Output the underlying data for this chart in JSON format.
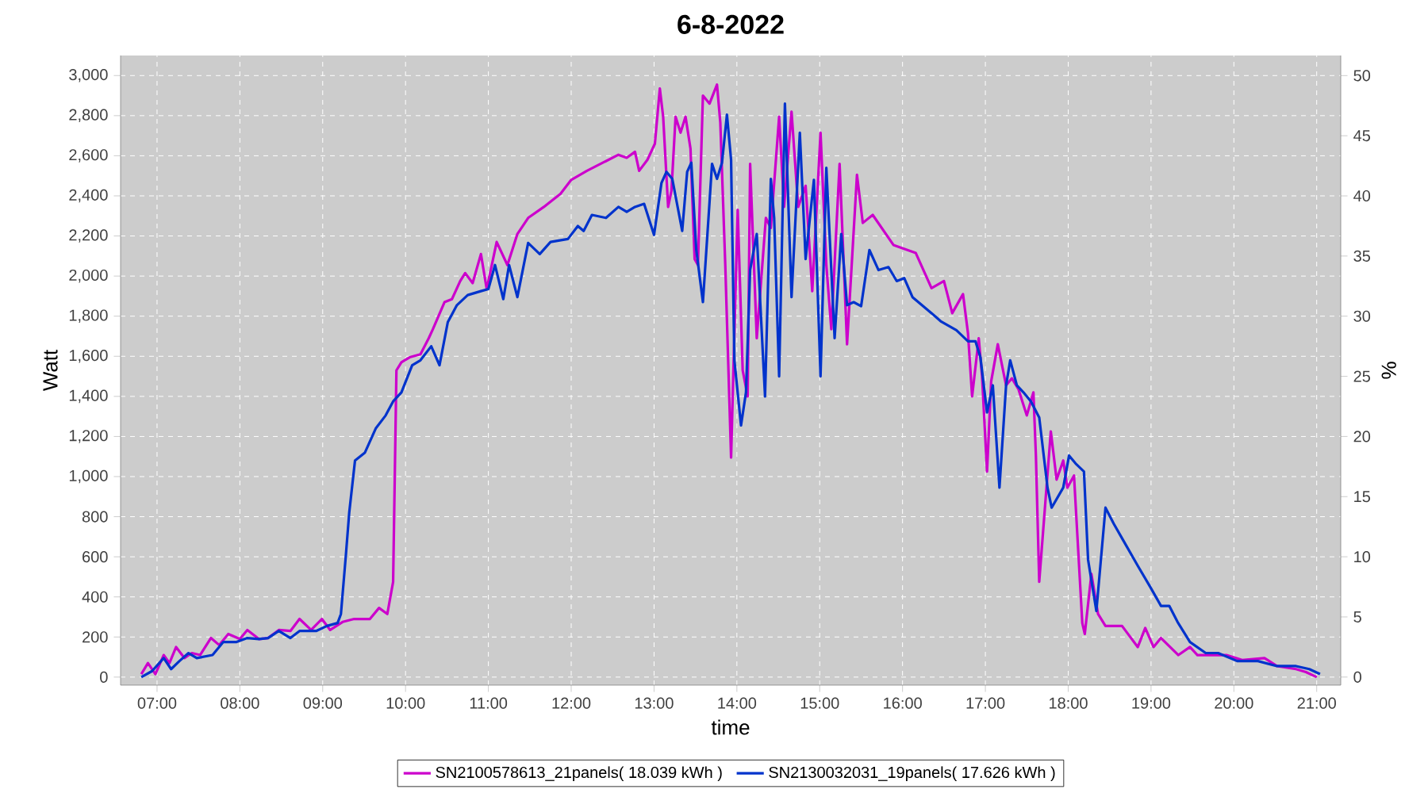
{
  "chart_data": {
    "type": "line",
    "title": "6-8-2022",
    "xlabel": "time",
    "ylabel": "Watt",
    "y2label": "%",
    "xlim": [
      6.56,
      21.29
    ],
    "ylim": [
      -40,
      3100
    ],
    "y2lim": [
      -0.67,
      51.67
    ],
    "xticks": [
      {
        "value": 7,
        "label": "07:00"
      },
      {
        "value": 8,
        "label": "08:00"
      },
      {
        "value": 9,
        "label": "09:00"
      },
      {
        "value": 10,
        "label": "10:00"
      },
      {
        "value": 11,
        "label": "11:00"
      },
      {
        "value": 12,
        "label": "12:00"
      },
      {
        "value": 13,
        "label": "13:00"
      },
      {
        "value": 14,
        "label": "14:00"
      },
      {
        "value": 15,
        "label": "15:00"
      },
      {
        "value": 16,
        "label": "16:00"
      },
      {
        "value": 17,
        "label": "17:00"
      },
      {
        "value": 18,
        "label": "18:00"
      },
      {
        "value": 19,
        "label": "19:00"
      },
      {
        "value": 20,
        "label": "20:00"
      },
      {
        "value": 21,
        "label": "21:00"
      }
    ],
    "yticks": [
      0,
      200,
      400,
      600,
      800,
      {
        "value": 1000,
        "label": "1,000"
      },
      {
        "value": 1200,
        "label": "1,200"
      },
      {
        "value": 1400,
        "label": "1,400"
      },
      {
        "value": 1600,
        "label": "1,600"
      },
      {
        "value": 1800,
        "label": "1,800"
      },
      {
        "value": 2000,
        "label": "2,000"
      },
      {
        "value": 2200,
        "label": "2,200"
      },
      {
        "value": 2400,
        "label": "2,400"
      },
      {
        "value": 2600,
        "label": "2,600"
      },
      {
        "value": 2800,
        "label": "2,800"
      },
      {
        "value": 3000,
        "label": "3,000"
      }
    ],
    "y2ticks": [
      0,
      5,
      10,
      15,
      20,
      25,
      30,
      35,
      40,
      45,
      50
    ],
    "grid": true,
    "legend": "bottom",
    "line_style": "solid",
    "series": [
      {
        "name": "SN2100578613_21panels( 18.039 kWh )",
        "color": "#cc00cc",
        "x": [
          6.81,
          6.89,
          6.98,
          7.08,
          7.15,
          7.23,
          7.33,
          7.42,
          7.52,
          7.65,
          7.75,
          7.86,
          8.0,
          8.09,
          8.23,
          8.34,
          8.47,
          8.61,
          8.72,
          8.86,
          8.99,
          9.09,
          9.24,
          9.38,
          9.57,
          9.68,
          9.78,
          9.85,
          9.89,
          9.95,
          10.05,
          10.18,
          10.28,
          10.33,
          10.47,
          10.56,
          10.66,
          10.72,
          10.81,
          10.91,
          10.98,
          11.1,
          11.23,
          11.35,
          11.48,
          11.67,
          11.87,
          12.0,
          12.19,
          12.38,
          12.57,
          12.67,
          12.77,
          12.82,
          12.92,
          13.01,
          13.07,
          13.11,
          13.17,
          13.21,
          13.26,
          13.32,
          13.38,
          13.44,
          13.49,
          13.53,
          13.59,
          13.67,
          13.76,
          13.8,
          13.86,
          13.93,
          14.01,
          14.07,
          14.13,
          14.16,
          14.24,
          14.35,
          14.41,
          14.51,
          14.57,
          14.66,
          14.74,
          14.83,
          14.91,
          15.01,
          15.08,
          15.14,
          15.24,
          15.33,
          15.45,
          15.52,
          15.64,
          15.89,
          16.16,
          16.35,
          16.5,
          16.6,
          16.73,
          16.79,
          16.84,
          16.92,
          16.96,
          17.02,
          17.07,
          17.15,
          17.25,
          17.32,
          17.4,
          17.5,
          17.58,
          17.61,
          17.65,
          17.79,
          17.86,
          17.94,
          17.99,
          18.07,
          18.17,
          18.2,
          18.28,
          18.36,
          18.45,
          18.65,
          18.84,
          18.93,
          19.03,
          19.12,
          19.33,
          19.47,
          19.56,
          19.91,
          20.1,
          20.37,
          20.52,
          20.75,
          20.87,
          21.0
        ],
        "values": [
          15,
          70,
          15,
          110,
          70,
          150,
          95,
          120,
          110,
          195,
          160,
          215,
          190,
          235,
          190,
          195,
          235,
          230,
          290,
          235,
          290,
          235,
          275,
          290,
          290,
          345,
          315,
          475,
          1530,
          1570,
          1595,
          1610,
          1690,
          1735,
          1870,
          1885,
          1975,
          2015,
          1965,
          2110,
          1935,
          2170,
          2055,
          2210,
          2290,
          2345,
          2410,
          2480,
          2525,
          2565,
          2605,
          2590,
          2620,
          2525,
          2580,
          2660,
          2935,
          2795,
          2345,
          2425,
          2795,
          2715,
          2795,
          2635,
          2085,
          2055,
          2900,
          2860,
          2955,
          2765,
          2055,
          1095,
          2330,
          1530,
          1400,
          2560,
          1690,
          2290,
          2240,
          2795,
          2345,
          2820,
          2345,
          2450,
          1925,
          2715,
          2055,
          1735,
          2560,
          1660,
          2505,
          2265,
          2305,
          2155,
          2115,
          1940,
          1975,
          1815,
          1910,
          1715,
          1400,
          1690,
          1500,
          1025,
          1475,
          1660,
          1455,
          1490,
          1435,
          1305,
          1420,
          1105,
          475,
          1225,
          985,
          1080,
          945,
          1005,
          270,
          215,
          515,
          315,
          255,
          255,
          150,
          245,
          150,
          195,
          110,
          150,
          110,
          110,
          85,
          95,
          55,
          40,
          25,
          0
        ]
      },
      {
        "name": "SN2130032031_19panels( 17.626 kWh )",
        "color": "#0033cc",
        "x": [
          6.81,
          6.94,
          7.08,
          7.17,
          7.27,
          7.38,
          7.48,
          7.67,
          7.8,
          7.96,
          8.09,
          8.23,
          8.34,
          8.47,
          8.61,
          8.72,
          8.92,
          9.05,
          9.18,
          9.22,
          9.28,
          9.32,
          9.39,
          9.51,
          9.64,
          9.76,
          9.85,
          9.95,
          10.08,
          10.18,
          10.31,
          10.41,
          10.51,
          10.62,
          10.75,
          10.91,
          11.0,
          11.08,
          11.18,
          11.25,
          11.35,
          11.48,
          11.62,
          11.75,
          11.96,
          12.08,
          12.15,
          12.25,
          12.42,
          12.57,
          12.67,
          12.77,
          12.88,
          13.0,
          13.09,
          13.15,
          13.22,
          13.34,
          13.4,
          13.45,
          13.51,
          13.59,
          13.67,
          13.7,
          13.76,
          13.82,
          13.88,
          13.93,
          13.97,
          14.05,
          14.11,
          14.16,
          14.24,
          14.34,
          14.41,
          14.45,
          14.51,
          14.58,
          14.66,
          14.76,
          14.83,
          14.93,
          15.01,
          15.08,
          15.18,
          15.26,
          15.33,
          15.41,
          15.5,
          15.6,
          15.71,
          15.83,
          15.93,
          16.02,
          16.12,
          16.35,
          16.46,
          16.65,
          16.79,
          16.88,
          16.94,
          17.02,
          17.09,
          17.17,
          17.25,
          17.3,
          17.38,
          17.46,
          17.55,
          17.65,
          17.75,
          17.8,
          17.94,
          18.01,
          18.09,
          18.19,
          18.24,
          18.34,
          18.45,
          18.55,
          18.66,
          18.84,
          18.99,
          19.12,
          19.22,
          19.32,
          19.47,
          19.66,
          19.81,
          20.04,
          20.29,
          20.52,
          20.75,
          20.91,
          21.04
        ],
        "values": [
          0,
          30,
          95,
          40,
          80,
          120,
          95,
          110,
          175,
          175,
          195,
          190,
          195,
          230,
          195,
          230,
          230,
          255,
          270,
          315,
          610,
          820,
          1080,
          1120,
          1240,
          1305,
          1375,
          1420,
          1555,
          1580,
          1650,
          1555,
          1770,
          1855,
          1905,
          1925,
          1935,
          2055,
          1885,
          2055,
          1895,
          2165,
          2110,
          2170,
          2185,
          2250,
          2225,
          2305,
          2290,
          2345,
          2320,
          2345,
          2360,
          2205,
          2465,
          2520,
          2485,
          2225,
          2520,
          2565,
          2130,
          1870,
          2370,
          2560,
          2485,
          2565,
          2805,
          2580,
          1580,
          1255,
          1420,
          2030,
          2210,
          1400,
          2485,
          2290,
          1500,
          2860,
          1895,
          2715,
          2085,
          2480,
          1500,
          2540,
          1690,
          2210,
          1855,
          1870,
          1850,
          2130,
          2030,
          2045,
          1975,
          1990,
          1895,
          1815,
          1775,
          1730,
          1675,
          1675,
          1595,
          1320,
          1455,
          945,
          1455,
          1580,
          1455,
          1420,
          1375,
          1295,
          945,
          845,
          945,
          1105,
          1065,
          1025,
          585,
          330,
          845,
          765,
          685,
          555,
          450,
          355,
          355,
          275,
          175,
          120,
          120,
          80,
          80,
          55,
          55,
          40,
          15
        ]
      }
    ]
  }
}
